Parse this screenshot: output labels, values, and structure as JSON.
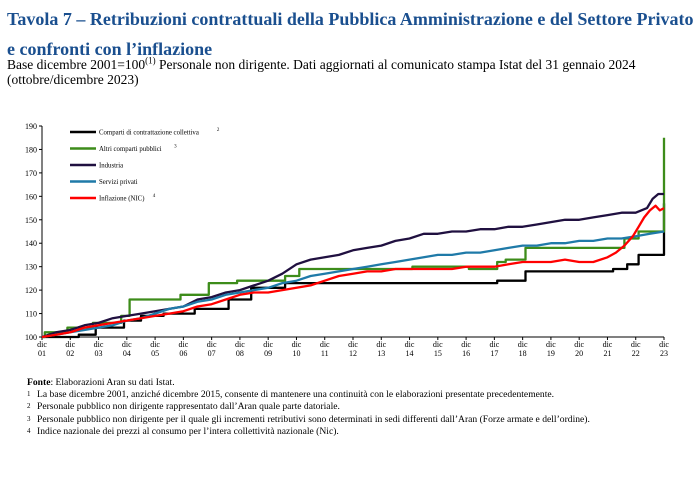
{
  "header": {
    "title": "Tavola 7 – Retribuzioni contrattuali della Pubblica Amministrazione e del Settore Privato e confronti con l’inflazione",
    "subtitle_pre": "Base dicembre 2001=100",
    "subtitle_sup": "(1)",
    "subtitle_post": " Personale non dirigente. Dati aggiornati al comunicato stampa Istat del 31 gennaio 2024 (ottobre/dicembre 2023)"
  },
  "notes": {
    "source_label": "Fonte",
    "source_text": ": Elaborazioni Aran su dati Istat.",
    "items": [
      {
        "mark": "1",
        "text": "La base dicembre 2001, anziché dicembre 2015, consente di mantenere una continuità con le elaborazioni presentate precedentemente."
      },
      {
        "mark": "2",
        "text": "Personale pubblico non dirigente rappresentato dall’Aran quale parte datoriale."
      },
      {
        "mark": "3",
        "text": "Personale pubblico non dirigente per il quale gli incrementi retributivi sono determinati in sedi differenti dall’Aran (Forze armate e dell’ordine)."
      },
      {
        "mark": "4",
        "text": "Indice nazionale dei prezzi al consumo per l’intera collettività nazionale (Nic)."
      }
    ]
  },
  "chart_data": {
    "type": "line",
    "title": "",
    "xlabel": "",
    "ylabel": "",
    "ylim": [
      100,
      190
    ],
    "yticks": [
      100,
      110,
      120,
      130,
      140,
      150,
      160,
      170,
      180,
      190
    ],
    "xlim": [
      2001,
      2023
    ],
    "xticks": [
      {
        "x": 2001,
        "top": "dic",
        "bottom": "01"
      },
      {
        "x": 2002,
        "top": "dic",
        "bottom": "02"
      },
      {
        "x": 2003,
        "top": "dic",
        "bottom": "03"
      },
      {
        "x": 2004,
        "top": "dic",
        "bottom": "04"
      },
      {
        "x": 2005,
        "top": "dic",
        "bottom": "05"
      },
      {
        "x": 2006,
        "top": "dic",
        "bottom": "06"
      },
      {
        "x": 2007,
        "top": "dic",
        "bottom": "07"
      },
      {
        "x": 2008,
        "top": "dic",
        "bottom": "08"
      },
      {
        "x": 2009,
        "top": "dic",
        "bottom": "09"
      },
      {
        "x": 2010,
        "top": "dic",
        "bottom": "10"
      },
      {
        "x": 2011,
        "top": "dic",
        "bottom": "11"
      },
      {
        "x": 2012,
        "top": "dic",
        "bottom": "12"
      },
      {
        "x": 2013,
        "top": "dic",
        "bottom": "13"
      },
      {
        "x": 2014,
        "top": "dic",
        "bottom": "14"
      },
      {
        "x": 2015,
        "top": "dic",
        "bottom": "15"
      },
      {
        "x": 2016,
        "top": "dic",
        "bottom": "16"
      },
      {
        "x": 2017,
        "top": "dic",
        "bottom": "17"
      },
      {
        "x": 2018,
        "top": "dic",
        "bottom": "18"
      },
      {
        "x": 2019,
        "top": "dic",
        "bottom": "19"
      },
      {
        "x": 2020,
        "top": "dic",
        "bottom": "20"
      },
      {
        "x": 2021,
        "top": "dic",
        "bottom": "21"
      },
      {
        "x": 2022,
        "top": "dic",
        "bottom": "22"
      },
      {
        "x": 2023,
        "top": "dic",
        "bottom": "23"
      }
    ],
    "grid": false,
    "legend_position": "top-left",
    "series": [
      {
        "name": "Comparti di contrattazione collettiva",
        "sup": "2",
        "color": "#000000",
        "step": true,
        "points": [
          [
            2001,
            100
          ],
          [
            2002.3,
            101
          ],
          [
            2002.9,
            104
          ],
          [
            2003.9,
            107
          ],
          [
            2004.5,
            109
          ],
          [
            2005.3,
            110
          ],
          [
            2006.4,
            112
          ],
          [
            2007.6,
            116
          ],
          [
            2008.4,
            121
          ],
          [
            2009.6,
            123
          ],
          [
            2010.3,
            123
          ],
          [
            2016.9,
            123
          ],
          [
            2017.1,
            124
          ],
          [
            2018.1,
            128
          ],
          [
            2019.9,
            128
          ],
          [
            2021.2,
            129
          ],
          [
            2021.7,
            131
          ],
          [
            2022.1,
            135
          ],
          [
            2022.9,
            135
          ],
          [
            2023,
            157
          ]
        ]
      },
      {
        "name": "Altri comparti pubblici",
        "sup": "3",
        "color": "#3d8c1a",
        "step": true,
        "points": [
          [
            2001,
            100
          ],
          [
            2001.1,
            102
          ],
          [
            2001.9,
            104
          ],
          [
            2002.8,
            106
          ],
          [
            2003.8,
            109
          ],
          [
            2004.1,
            116
          ],
          [
            2005.1,
            116
          ],
          [
            2005.9,
            118
          ],
          [
            2006.9,
            123
          ],
          [
            2007.9,
            124
          ],
          [
            2009.1,
            124
          ],
          [
            2009.6,
            126
          ],
          [
            2010.1,
            129
          ],
          [
            2013.6,
            129
          ],
          [
            2014.1,
            130
          ],
          [
            2015.6,
            130
          ],
          [
            2016.1,
            129
          ],
          [
            2017.1,
            132
          ],
          [
            2017.4,
            133
          ],
          [
            2018.1,
            138
          ],
          [
            2021.1,
            138
          ],
          [
            2021.6,
            142
          ],
          [
            2022.1,
            145
          ],
          [
            2022.8,
            145
          ],
          [
            2023,
            185
          ]
        ]
      },
      {
        "name": "Industria",
        "sup": "",
        "color": "#201040",
        "step": false,
        "points": [
          [
            2001,
            100
          ],
          [
            2001.5,
            102
          ],
          [
            2002,
            103
          ],
          [
            2002.5,
            105
          ],
          [
            2003,
            106
          ],
          [
            2003.5,
            108
          ],
          [
            2004,
            109
          ],
          [
            2004.5,
            110
          ],
          [
            2005,
            111
          ],
          [
            2005.5,
            112
          ],
          [
            2006,
            113
          ],
          [
            2006.5,
            116
          ],
          [
            2007,
            117
          ],
          [
            2007.5,
            119
          ],
          [
            2008,
            120
          ],
          [
            2008.5,
            122
          ],
          [
            2009,
            124
          ],
          [
            2009.5,
            127
          ],
          [
            2010,
            131
          ],
          [
            2010.5,
            133
          ],
          [
            2011,
            134
          ],
          [
            2011.5,
            135
          ],
          [
            2012,
            137
          ],
          [
            2012.5,
            138
          ],
          [
            2013,
            139
          ],
          [
            2013.5,
            141
          ],
          [
            2014,
            142
          ],
          [
            2014.5,
            144
          ],
          [
            2015,
            144
          ],
          [
            2015.5,
            145
          ],
          [
            2016,
            145
          ],
          [
            2016.5,
            146
          ],
          [
            2017,
            146
          ],
          [
            2017.5,
            147
          ],
          [
            2018,
            147
          ],
          [
            2018.5,
            148
          ],
          [
            2019,
            149
          ],
          [
            2019.5,
            150
          ],
          [
            2020,
            150
          ],
          [
            2020.5,
            151
          ],
          [
            2021,
            152
          ],
          [
            2021.5,
            153
          ],
          [
            2022,
            153
          ],
          [
            2022.4,
            155
          ],
          [
            2022.6,
            159
          ],
          [
            2022.8,
            161
          ],
          [
            2023,
            161
          ]
        ]
      },
      {
        "name": "Servizi privati",
        "sup": "",
        "color": "#1f7aa8",
        "step": false,
        "points": [
          [
            2001,
            100
          ],
          [
            2001.5,
            101
          ],
          [
            2002,
            102
          ],
          [
            2002.5,
            103
          ],
          [
            2003,
            104
          ],
          [
            2003.5,
            105
          ],
          [
            2004,
            107
          ],
          [
            2004.5,
            108
          ],
          [
            2005,
            110
          ],
          [
            2005.5,
            112
          ],
          [
            2006,
            113
          ],
          [
            2006.5,
            115
          ],
          [
            2007,
            116
          ],
          [
            2007.5,
            118
          ],
          [
            2008,
            119
          ],
          [
            2008.5,
            120
          ],
          [
            2009,
            121
          ],
          [
            2009.5,
            123
          ],
          [
            2010,
            124
          ],
          [
            2010.5,
            126
          ],
          [
            2011,
            127
          ],
          [
            2011.5,
            128
          ],
          [
            2012,
            129
          ],
          [
            2012.5,
            130
          ],
          [
            2013,
            131
          ],
          [
            2013.5,
            132
          ],
          [
            2014,
            133
          ],
          [
            2014.5,
            134
          ],
          [
            2015,
            135
          ],
          [
            2015.5,
            135
          ],
          [
            2016,
            136
          ],
          [
            2016.5,
            136
          ],
          [
            2017,
            137
          ],
          [
            2017.5,
            138
          ],
          [
            2018,
            139
          ],
          [
            2018.5,
            139
          ],
          [
            2019,
            140
          ],
          [
            2019.5,
            140
          ],
          [
            2020,
            141
          ],
          [
            2020.5,
            141
          ],
          [
            2021,
            142
          ],
          [
            2021.5,
            142
          ],
          [
            2022,
            143
          ],
          [
            2022.5,
            144
          ],
          [
            2023,
            145
          ]
        ]
      },
      {
        "name": "Inflazione (NIC)",
        "sup": "4",
        "color": "#ff0000",
        "step": false,
        "points": [
          [
            2001,
            100
          ],
          [
            2001.5,
            101
          ],
          [
            2002,
            102
          ],
          [
            2002.5,
            104
          ],
          [
            2003,
            105
          ],
          [
            2003.5,
            106
          ],
          [
            2004,
            107
          ],
          [
            2004.5,
            108
          ],
          [
            2005,
            109
          ],
          [
            2005.5,
            110
          ],
          [
            2006,
            111
          ],
          [
            2006.5,
            113
          ],
          [
            2007,
            114
          ],
          [
            2007.5,
            116
          ],
          [
            2008,
            118
          ],
          [
            2008.5,
            119
          ],
          [
            2009,
            119
          ],
          [
            2009.5,
            120
          ],
          [
            2010,
            121
          ],
          [
            2010.5,
            122
          ],
          [
            2011,
            124
          ],
          [
            2011.5,
            126
          ],
          [
            2012,
            127
          ],
          [
            2012.5,
            128
          ],
          [
            2013,
            128
          ],
          [
            2013.5,
            129
          ],
          [
            2014,
            129
          ],
          [
            2014.5,
            129
          ],
          [
            2015,
            129
          ],
          [
            2015.5,
            129
          ],
          [
            2016,
            130
          ],
          [
            2016.5,
            130
          ],
          [
            2017,
            130
          ],
          [
            2017.5,
            131
          ],
          [
            2018,
            132
          ],
          [
            2018.5,
            132
          ],
          [
            2019,
            132
          ],
          [
            2019.5,
            133
          ],
          [
            2020,
            132
          ],
          [
            2020.5,
            132
          ],
          [
            2021,
            134
          ],
          [
            2021.3,
            136
          ],
          [
            2021.6,
            139
          ],
          [
            2021.9,
            143
          ],
          [
            2022.1,
            147
          ],
          [
            2022.3,
            151
          ],
          [
            2022.5,
            154
          ],
          [
            2022.7,
            156
          ],
          [
            2022.85,
            154
          ],
          [
            2023,
            155
          ]
        ]
      }
    ]
  }
}
